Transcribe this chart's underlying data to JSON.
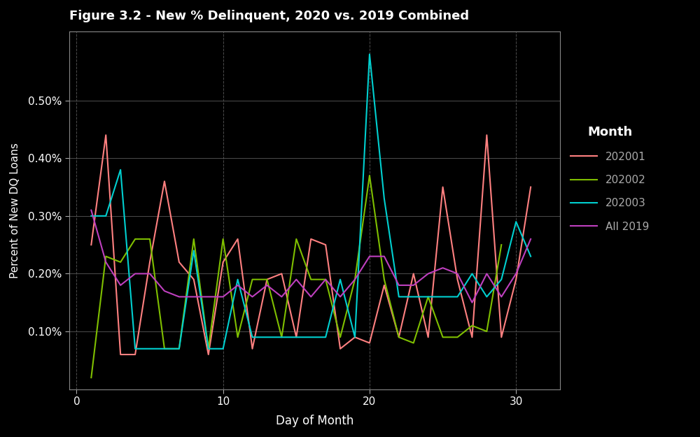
{
  "title": "Figure 3.2 - New % Delinquent, 2020 vs. 2019 Combined",
  "xlabel": "Day of Month",
  "ylabel": "Percent of New DQ Loans",
  "background_color": "#000000",
  "text_color": "#ffffff",
  "series": {
    "202001": {
      "color": "#ff8080",
      "x": [
        1,
        2,
        3,
        4,
        5,
        6,
        7,
        8,
        9,
        10,
        11,
        12,
        13,
        14,
        15,
        16,
        17,
        18,
        19,
        20,
        21,
        22,
        23,
        24,
        25,
        26,
        27,
        28,
        29,
        30,
        31
      ],
      "y": [
        0.0025,
        0.0044,
        0.0006,
        0.0006,
        0.0022,
        0.0036,
        0.0022,
        0.0019,
        0.0006,
        0.0022,
        0.0026,
        0.0007,
        0.0019,
        0.002,
        0.0009,
        0.0026,
        0.0025,
        0.0007,
        0.0009,
        0.0008,
        0.0018,
        0.0009,
        0.002,
        0.0009,
        0.0035,
        0.0019,
        0.0009,
        0.0044,
        0.0009,
        0.0019,
        0.0035
      ]
    },
    "202002": {
      "color": "#7fbf00",
      "x": [
        1,
        2,
        3,
        4,
        5,
        6,
        7,
        8,
        9,
        10,
        11,
        12,
        13,
        14,
        15,
        16,
        17,
        18,
        19,
        20,
        21,
        22,
        23,
        24,
        25,
        26,
        27,
        28,
        29
      ],
      "y": [
        0.0002,
        0.0023,
        0.0022,
        0.0026,
        0.0026,
        0.0007,
        0.0007,
        0.0026,
        0.0007,
        0.0026,
        0.0009,
        0.0019,
        0.0019,
        0.0009,
        0.0026,
        0.0019,
        0.0019,
        0.0009,
        0.0019,
        0.0037,
        0.0019,
        0.0009,
        0.0008,
        0.0016,
        0.0009,
        0.0009,
        0.0011,
        0.001,
        0.0025
      ]
    },
    "202003": {
      "color": "#00d0d0",
      "x": [
        1,
        2,
        3,
        4,
        5,
        6,
        7,
        8,
        9,
        10,
        11,
        12,
        13,
        14,
        15,
        16,
        17,
        18,
        19,
        20,
        21,
        22,
        23,
        24,
        25,
        26,
        27,
        28,
        29,
        30,
        31
      ],
      "y": [
        0.003,
        0.003,
        0.0038,
        0.0007,
        0.0007,
        0.0007,
        0.0007,
        0.0024,
        0.0007,
        0.0007,
        0.0019,
        0.0009,
        0.0009,
        0.0009,
        0.0009,
        0.0009,
        0.0009,
        0.0019,
        0.0009,
        0.0058,
        0.0033,
        0.0016,
        0.0016,
        0.0016,
        0.0016,
        0.0016,
        0.002,
        0.0016,
        0.0019,
        0.0029,
        0.0023
      ]
    },
    "All 2019": {
      "color": "#bf40bf",
      "x": [
        1,
        2,
        3,
        4,
        5,
        6,
        7,
        8,
        9,
        10,
        11,
        12,
        13,
        14,
        15,
        16,
        17,
        18,
        19,
        20,
        21,
        22,
        23,
        24,
        25,
        26,
        27,
        28,
        29,
        30,
        31
      ],
      "y": [
        0.0031,
        0.0022,
        0.0018,
        0.002,
        0.002,
        0.0017,
        0.0016,
        0.0016,
        0.0016,
        0.0016,
        0.0018,
        0.0016,
        0.0018,
        0.0016,
        0.0019,
        0.0016,
        0.0019,
        0.0016,
        0.0019,
        0.0023,
        0.0023,
        0.0018,
        0.0018,
        0.002,
        0.0021,
        0.002,
        0.0015,
        0.002,
        0.0016,
        0.002,
        0.0026
      ]
    }
  },
  "series_order": [
    "202001",
    "202002",
    "202003",
    "All 2019"
  ],
  "xticks": [
    0,
    10,
    20,
    30
  ],
  "xlim": [
    -0.5,
    33.0
  ],
  "ylim": [
    0.0,
    0.0062
  ],
  "ytick_vals": [
    0.001,
    0.002,
    0.003,
    0.004,
    0.005
  ],
  "ytick_labels": [
    "0.10%",
    "0.20%",
    "0.30%",
    "0.40%",
    "0.50%"
  ]
}
